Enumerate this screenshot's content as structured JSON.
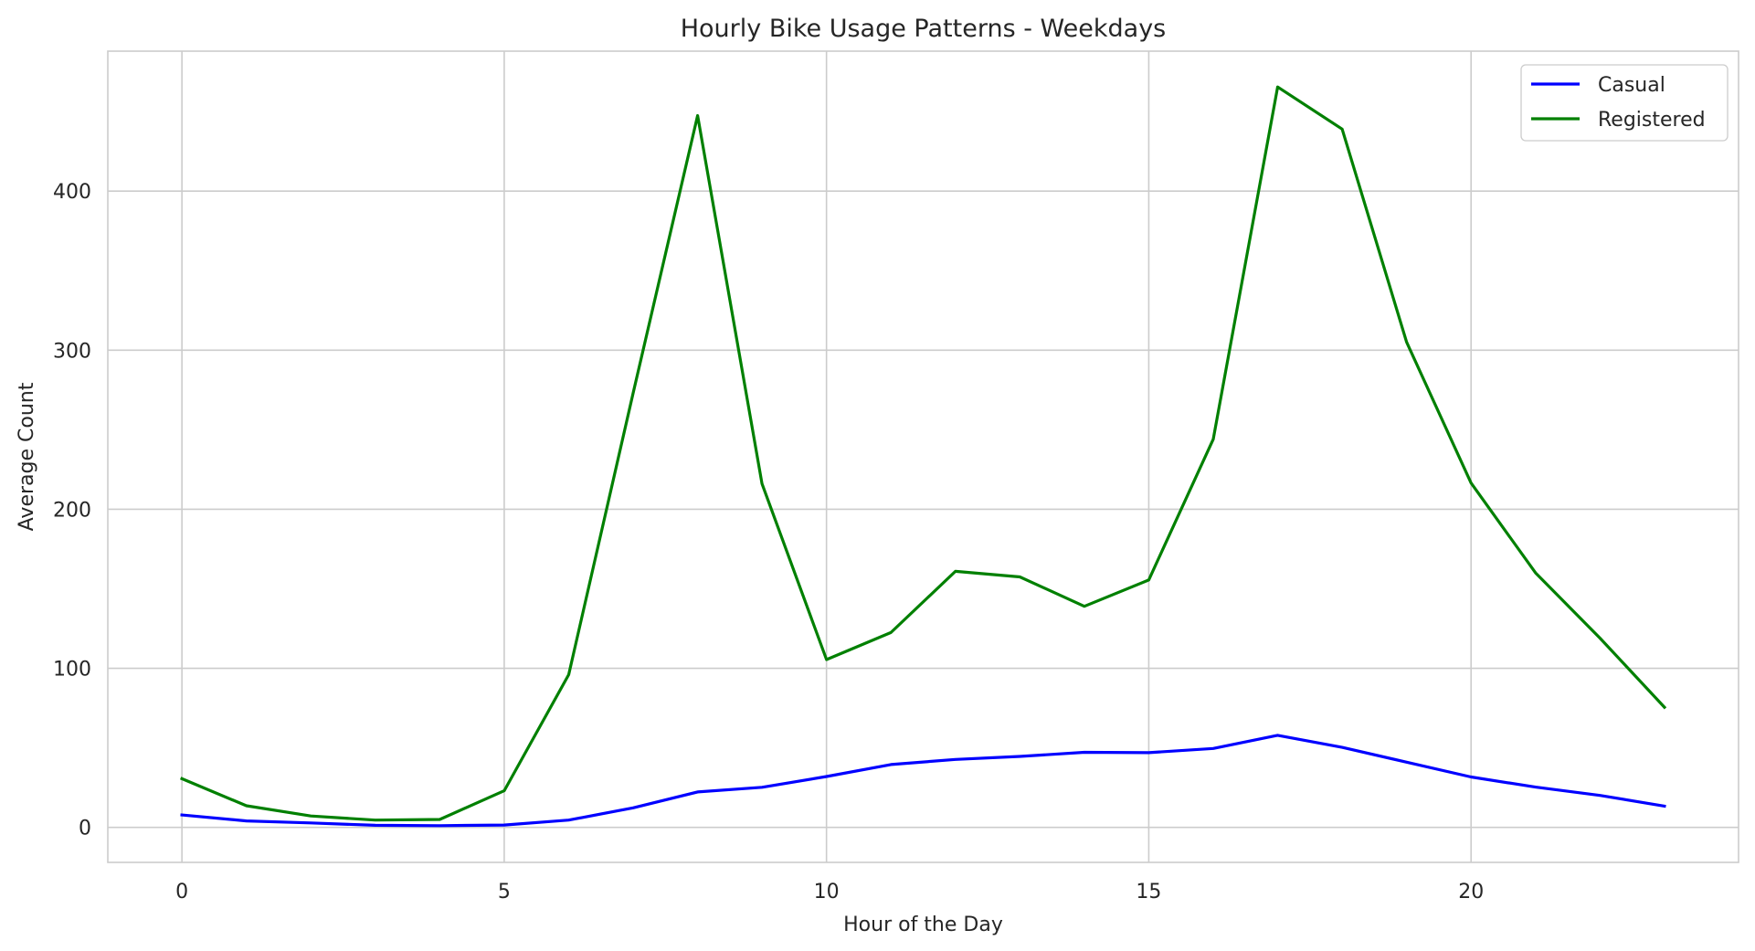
{
  "chart_data": {
    "type": "line",
    "title": "Hourly Bike Usage Patterns - Weekdays",
    "xlabel": "Hour of the Day",
    "ylabel": "Average Count",
    "x": [
      0,
      1,
      2,
      3,
      4,
      5,
      6,
      7,
      8,
      9,
      10,
      11,
      12,
      13,
      14,
      15,
      16,
      17,
      18,
      19,
      20,
      21,
      22,
      23
    ],
    "xlim": [
      -1.15,
      24.15
    ],
    "ylim": [
      -22,
      488
    ],
    "xticks": [
      0,
      5,
      10,
      15,
      20
    ],
    "yticks": [
      0,
      100,
      200,
      300,
      400
    ],
    "grid": true,
    "legend_position": "top-right",
    "series": [
      {
        "name": "Casual",
        "color": "#0000ff",
        "values": [
          7.8,
          4.1,
          2.8,
          1.3,
          1.1,
          1.5,
          4.6,
          12.3,
          22.3,
          25.2,
          32.0,
          39.5,
          42.7,
          44.6,
          47.2,
          47.0,
          49.6,
          57.9,
          50.3,
          41.0,
          31.7,
          25.3,
          20.1,
          13.4
        ]
      },
      {
        "name": "Registered",
        "color": "#008000",
        "values": [
          30.6,
          13.6,
          7.2,
          4.6,
          5.0,
          23.0,
          96.0,
          273.0,
          447.5,
          216.0,
          105.5,
          122.5,
          161.0,
          157.5,
          139.0,
          155.5,
          244.0,
          465.5,
          439.0,
          305.0,
          216.5,
          160.0,
          119.0,
          75.5
        ]
      }
    ]
  }
}
